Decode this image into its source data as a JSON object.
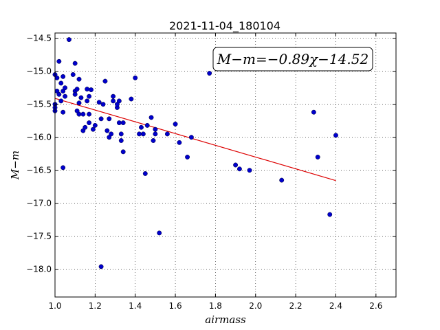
{
  "chart_data": {
    "type": "scatter",
    "title": "2021-11-04_180104",
    "xlabel": "airmass",
    "ylabel": "M−m",
    "xlim": [
      1.0,
      2.7
    ],
    "ylim": [
      -18.42,
      -14.42
    ],
    "grid": true,
    "xticks": [
      1.0,
      1.2,
      1.4,
      1.6,
      1.8,
      2.0,
      2.2,
      2.4,
      2.6
    ],
    "xtick_labels": [
      "1.0",
      "1.2",
      "1.4",
      "1.6",
      "1.8",
      "2.0",
      "2.2",
      "2.4",
      "2.6"
    ],
    "yticks": [
      -14.5,
      -15.0,
      -15.5,
      -16.0,
      -16.5,
      -17.0,
      -17.5,
      -18.0
    ],
    "ytick_labels": [
      "−14.5",
      "−15.0",
      "−15.5",
      "−16.0",
      "−16.5",
      "−17.0",
      "−17.5",
      "−18.0"
    ],
    "annotation": "M−m=−0.89χ−14.52",
    "annotation_placement": "top-right",
    "point_color": "#0000cc",
    "fit_color": "#dd0000",
    "fit": {
      "slope": -0.89,
      "intercept": -14.52,
      "x_range": [
        1.0,
        2.4
      ]
    },
    "points": [
      [
        1.0,
        -15.05
      ],
      [
        1.01,
        -15.1
      ],
      [
        1.0,
        -15.5
      ],
      [
        1.0,
        -15.55
      ],
      [
        1.0,
        -15.6
      ],
      [
        1.01,
        -15.3
      ],
      [
        1.02,
        -15.35
      ],
      [
        1.02,
        -14.85
      ],
      [
        1.03,
        -15.18
      ],
      [
        1.03,
        -15.45
      ],
      [
        1.04,
        -15.08
      ],
      [
        1.04,
        -15.3
      ],
      [
        1.04,
        -15.62
      ],
      [
        1.05,
        -15.25
      ],
      [
        1.05,
        -15.38
      ],
      [
        1.04,
        -16.46
      ],
      [
        1.07,
        -14.52
      ],
      [
        1.09,
        -15.05
      ],
      [
        1.1,
        -14.88
      ],
      [
        1.1,
        -15.3
      ],
      [
        1.1,
        -15.35
      ],
      [
        1.11,
        -15.6
      ],
      [
        1.11,
        -15.27
      ],
      [
        1.12,
        -15.12
      ],
      [
        1.12,
        -15.48
      ],
      [
        1.12,
        -15.65
      ],
      [
        1.13,
        -15.4
      ],
      [
        1.14,
        -15.9
      ],
      [
        1.14,
        -15.65
      ],
      [
        1.15,
        -15.85
      ],
      [
        1.16,
        -15.27
      ],
      [
        1.16,
        -15.45
      ],
      [
        1.17,
        -15.38
      ],
      [
        1.17,
        -15.78
      ],
      [
        1.17,
        -15.65
      ],
      [
        1.18,
        -15.28
      ],
      [
        1.19,
        -15.88
      ],
      [
        1.2,
        -15.82
      ],
      [
        1.22,
        -15.47
      ],
      [
        1.23,
        -15.72
      ],
      [
        1.23,
        -17.96
      ],
      [
        1.24,
        -15.5
      ],
      [
        1.25,
        -15.15
      ],
      [
        1.26,
        -15.9
      ],
      [
        1.27,
        -15.72
      ],
      [
        1.27,
        -16.0
      ],
      [
        1.28,
        -15.95
      ],
      [
        1.29,
        -15.38
      ],
      [
        1.29,
        -15.45
      ],
      [
        1.31,
        -15.55
      ],
      [
        1.31,
        -15.5
      ],
      [
        1.32,
        -15.45
      ],
      [
        1.32,
        -15.78
      ],
      [
        1.33,
        -15.95
      ],
      [
        1.33,
        -16.05
      ],
      [
        1.34,
        -15.78
      ],
      [
        1.34,
        -16.22
      ],
      [
        1.38,
        -15.42
      ],
      [
        1.4,
        -15.1
      ],
      [
        1.42,
        -15.95
      ],
      [
        1.43,
        -15.85
      ],
      [
        1.44,
        -15.95
      ],
      [
        1.45,
        -16.55
      ],
      [
        1.46,
        -15.82
      ],
      [
        1.48,
        -15.7
      ],
      [
        1.49,
        -16.05
      ],
      [
        1.5,
        -15.88
      ],
      [
        1.5,
        -15.95
      ],
      [
        1.52,
        -17.45
      ],
      [
        1.56,
        -15.95
      ],
      [
        1.6,
        -15.8
      ],
      [
        1.62,
        -16.08
      ],
      [
        1.66,
        -16.3
      ],
      [
        1.68,
        -16.0
      ],
      [
        1.77,
        -15.03
      ],
      [
        1.9,
        -16.42
      ],
      [
        1.92,
        -16.48
      ],
      [
        1.97,
        -16.5
      ],
      [
        2.13,
        -16.65
      ],
      [
        2.29,
        -15.62
      ],
      [
        2.31,
        -16.3
      ],
      [
        2.37,
        -17.17
      ],
      [
        2.4,
        -15.97
      ]
    ]
  }
}
